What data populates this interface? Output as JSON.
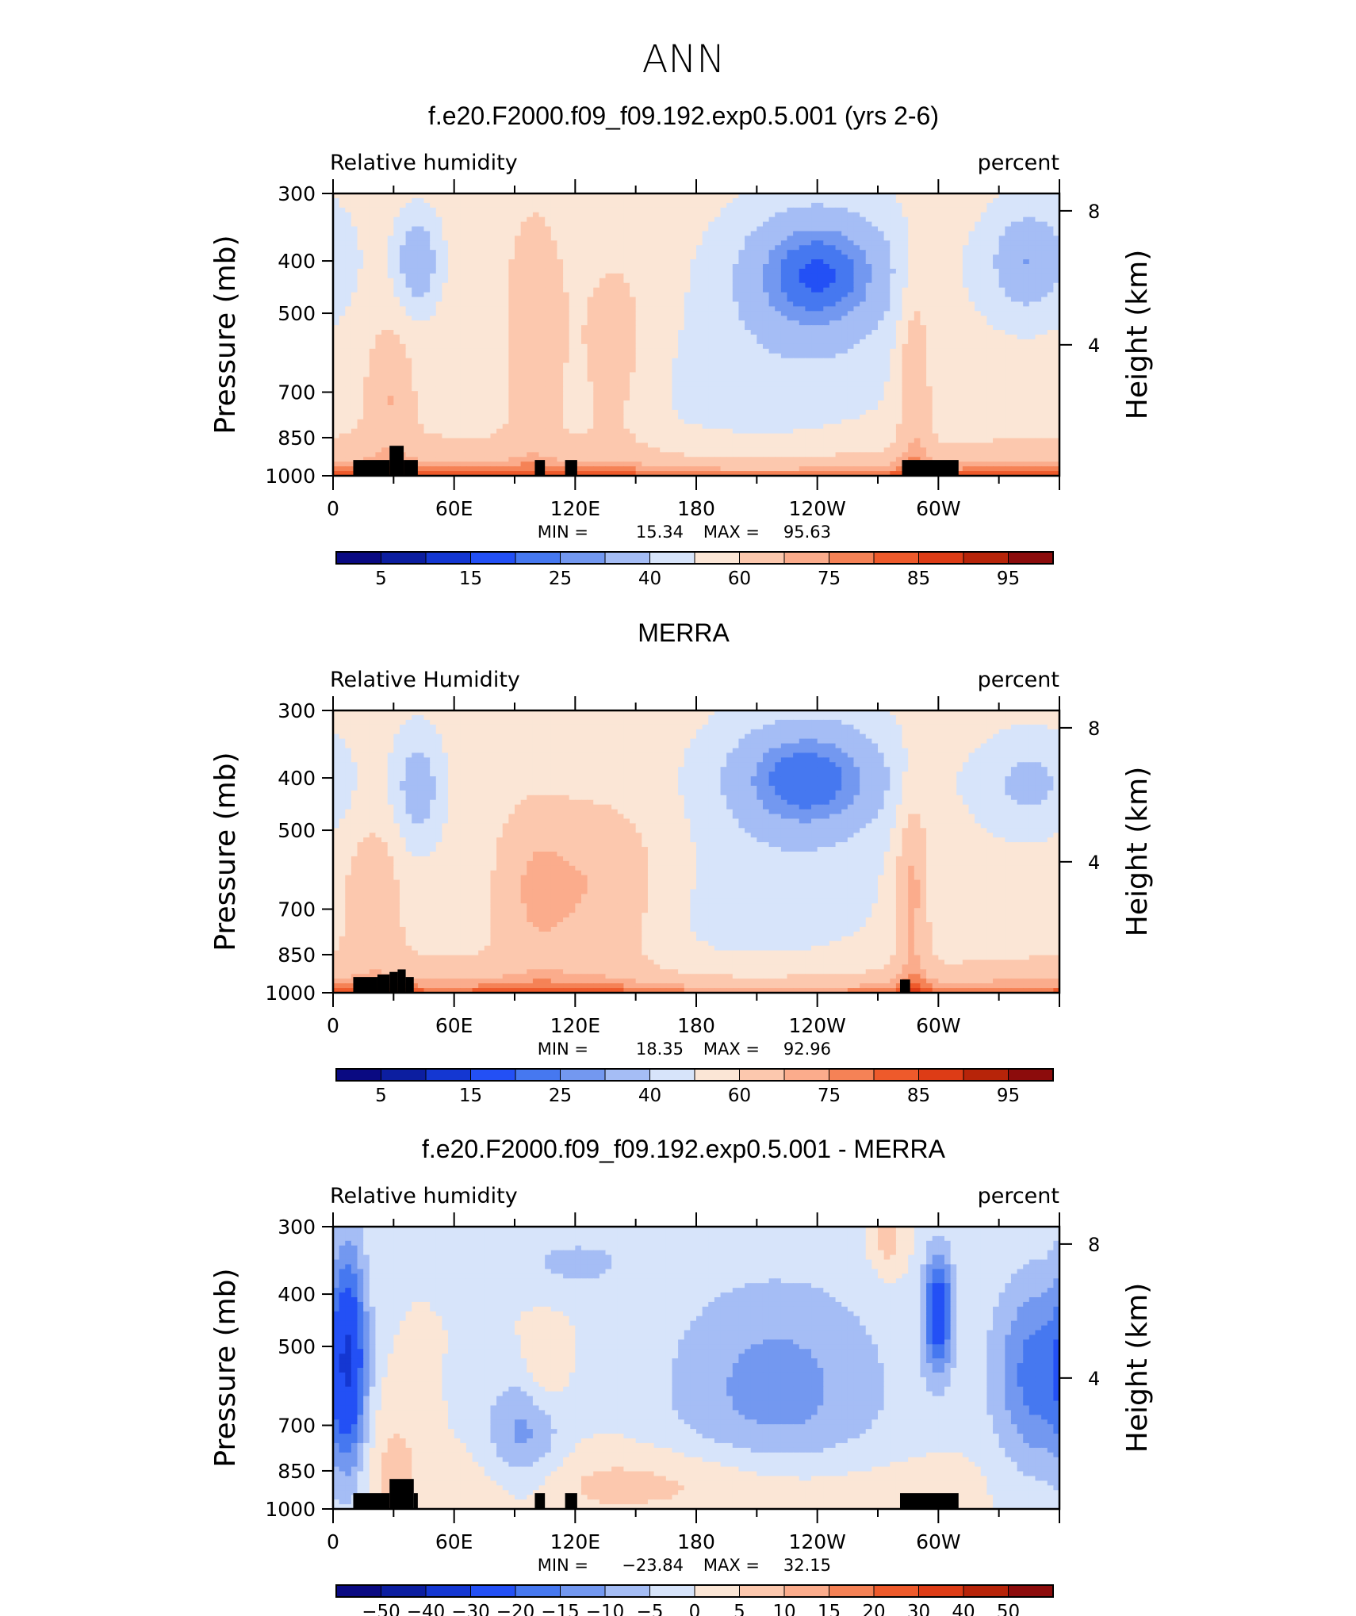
{
  "page": {
    "title": "ANN"
  },
  "chart_data": [
    {
      "type": "heatmap",
      "title": "f.e20.F2000.f09_f09.192.exp0.5.001 (yrs 2-6)",
      "variable_label": "Relative humidity",
      "units_label": "percent",
      "ylabel": "Pressure (mb)",
      "ylabel_right": "Height (km)",
      "x_ticks": [
        "0",
        "60E",
        "120E",
        "180",
        "120W",
        "60W"
      ],
      "y_ticks": [
        "300",
        "400",
        "500",
        "700",
        "850",
        "1000"
      ],
      "y_right_ticks": [
        "8",
        "4"
      ],
      "min_label": "MIN = ",
      "min": "15.34",
      "max_label": "MAX = ",
      "max": "95.63",
      "colorbar_labels": [
        "5",
        "15",
        "25",
        "40",
        "60",
        "75",
        "85",
        "95"
      ],
      "colors": [
        "#0a0a82",
        "#0c1ea0",
        "#1437d2",
        "#2350f5",
        "#4678f0",
        "#7398f0",
        "#a5bdf5",
        "#d7e4fa",
        "#fbe6d6",
        "#fcc8ae",
        "#fbac8c",
        "#f58256",
        "#ee5a2b",
        "#dd3c16",
        "#b72409",
        "#8c0c0c"
      ]
    },
    {
      "type": "heatmap",
      "title": "MERRA",
      "variable_label": "Relative Humidity",
      "units_label": "percent",
      "ylabel": "Pressure (mb)",
      "ylabel_right": "Height (km)",
      "x_ticks": [
        "0",
        "60E",
        "120E",
        "180",
        "120W",
        "60W"
      ],
      "y_ticks": [
        "300",
        "400",
        "500",
        "700",
        "850",
        "1000"
      ],
      "y_right_ticks": [
        "8",
        "4"
      ],
      "min_label": "MIN = ",
      "min": "18.35",
      "max_label": "MAX = ",
      "max": "92.96",
      "colorbar_labels": [
        "5",
        "15",
        "25",
        "40",
        "60",
        "75",
        "85",
        "95"
      ],
      "colors": [
        "#0a0a82",
        "#0c1ea0",
        "#1437d2",
        "#2350f5",
        "#4678f0",
        "#7398f0",
        "#a5bdf5",
        "#d7e4fa",
        "#fbe6d6",
        "#fcc8ae",
        "#fbac8c",
        "#f58256",
        "#ee5a2b",
        "#dd3c16",
        "#b72409",
        "#8c0c0c"
      ]
    },
    {
      "type": "heatmap",
      "title": "f.e20.F2000.f09_f09.192.exp0.5.001 - MERRA",
      "variable_label": "Relative humidity",
      "units_label": "percent",
      "ylabel": "Pressure (mb)",
      "ylabel_right": "Height (km)",
      "x_ticks": [
        "0",
        "60E",
        "120E",
        "180",
        "120W",
        "60W"
      ],
      "y_ticks": [
        "300",
        "400",
        "500",
        "700",
        "850",
        "1000"
      ],
      "y_right_ticks": [
        "8",
        "4"
      ],
      "min_label": "MIN = ",
      "min": "−23.84",
      "max_label": "MAX = ",
      "max": "32.15",
      "colorbar_labels": [
        "−50",
        "−40",
        "−30",
        "−20",
        "−15",
        "−10",
        "−5",
        "0",
        "5",
        "10",
        "15",
        "20",
        "30",
        "40",
        "50"
      ],
      "colors": [
        "#0a0a82",
        "#0c1ea0",
        "#1437d2",
        "#2350f5",
        "#4678f0",
        "#7398f0",
        "#a5bdf5",
        "#d7e4fa",
        "#fbe6d6",
        "#fcc8ae",
        "#fbac8c",
        "#f58256",
        "#ee5a2b",
        "#dd3c16",
        "#b72409",
        "#8c0c0c"
      ]
    }
  ]
}
